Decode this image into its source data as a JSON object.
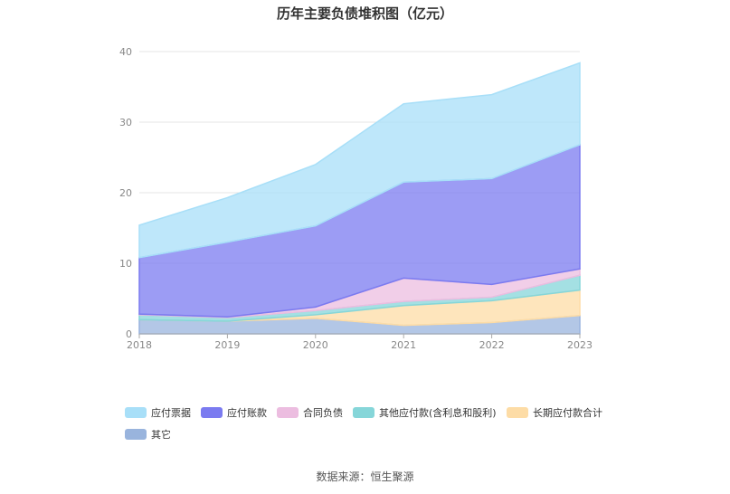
{
  "chart_data": {
    "type": "area",
    "stacked": true,
    "title": "历年主要负债堆积图（亿元）",
    "x": [
      "2018",
      "2019",
      "2020",
      "2021",
      "2022",
      "2023"
    ],
    "ylim": [
      0,
      40
    ],
    "yticks": [
      0,
      10,
      20,
      30,
      40
    ],
    "grid": true,
    "legend_position": "bottom",
    "series": [
      {
        "name": "应付票据",
        "color": "#a8dff8",
        "values": [
          4.6,
          6.3,
          8.7,
          11.1,
          11.9,
          11.6
        ]
      },
      {
        "name": "应付账款",
        "color": "#7b7bf0",
        "values": [
          8.0,
          10.6,
          11.5,
          13.6,
          15.0,
          17.6
        ]
      },
      {
        "name": "合同负债",
        "color": "#ecbde0",
        "values": [
          0.1,
          0.1,
          0.5,
          3.3,
          1.8,
          0.9
        ]
      },
      {
        "name": "其他应付款(含利息和股利)",
        "color": "#86d6d9",
        "values": [
          0.7,
          0.5,
          0.6,
          0.6,
          0.5,
          2.1
        ]
      },
      {
        "name": "长期应付款合计",
        "color": "#fddca6",
        "values": [
          0.0,
          0.0,
          0.5,
          2.8,
          3.1,
          3.6
        ]
      },
      {
        "name": "其它",
        "color": "#99b4dd",
        "values": [
          2.0,
          1.8,
          2.2,
          1.2,
          1.6,
          2.6
        ]
      }
    ]
  },
  "source": "数据来源：恒生聚源"
}
